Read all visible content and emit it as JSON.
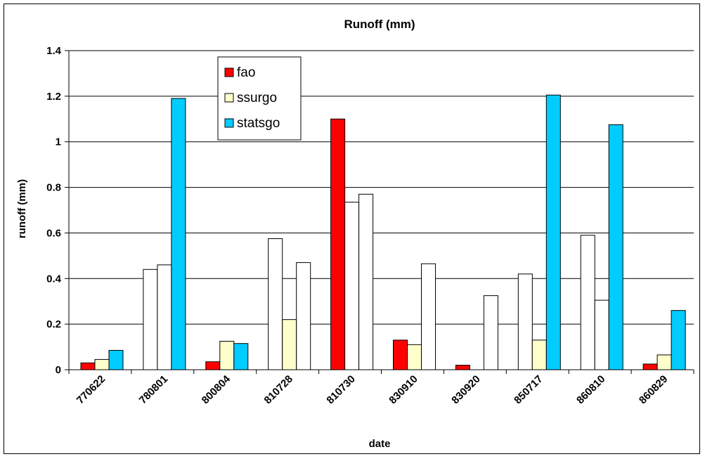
{
  "chart_data": {
    "type": "bar",
    "title": "Runoff (mm)",
    "xlabel": "date",
    "ylabel": "runoff (mm)",
    "ylim": [
      0,
      1.4
    ],
    "yticks": [
      "0",
      "0.2",
      "0.4",
      "0.6",
      "0.8",
      "1",
      "1.2",
      "1.4"
    ],
    "categories": [
      "770622",
      "780801",
      "800804",
      "810728",
      "810730",
      "830910",
      "830920",
      "850717",
      "860810",
      "860829"
    ],
    "grid": "horizontal",
    "legend_position": "top-left",
    "series": [
      {
        "name": "fao",
        "color": "#ff0000",
        "values": [
          0.03,
          0.44,
          0.035,
          0.575,
          1.1,
          0.13,
          0.02,
          0.42,
          0.59,
          0.025
        ],
        "fill_colors": [
          "#ff0000",
          "#ffffff",
          "#ff0000",
          "#ffffff",
          "#ff0000",
          "#ff0000",
          "#ff0000",
          "#ffffff",
          "#ffffff",
          "#ff0000"
        ]
      },
      {
        "name": "ssurgo",
        "color": "#ffffcc",
        "values": [
          0.045,
          0.46,
          0.125,
          0.22,
          0.735,
          0.11,
          0,
          0.13,
          0.305,
          0.065
        ],
        "fill_colors": [
          "#ffffcc",
          "#ffffff",
          "#ffffcc",
          "#ffffcc",
          "#ffffff",
          "#ffffcc",
          "#ffffcc",
          "#ffffcc",
          "#ffffff",
          "#ffffcc"
        ]
      },
      {
        "name": "statsgo",
        "color": "#00ccff",
        "values": [
          0.085,
          1.19,
          0.115,
          0.47,
          0.77,
          0.465,
          0.325,
          1.205,
          1.075,
          0.26
        ],
        "fill_colors": [
          "#00ccff",
          "#00ccff",
          "#00ccff",
          "#ffffff",
          "#ffffff",
          "#ffffff",
          "#ffffff",
          "#00ccff",
          "#00ccff",
          "#00ccff"
        ]
      }
    ]
  }
}
